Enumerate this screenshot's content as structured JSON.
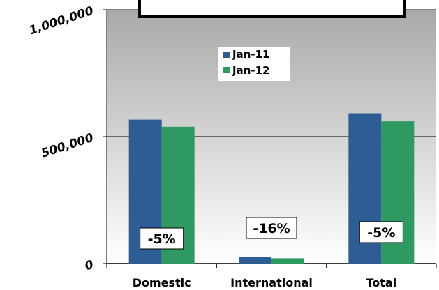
{
  "chart_data": {
    "type": "bar",
    "title": "",
    "xlabel": "",
    "ylabel": "",
    "categories": [
      "Domestic",
      "International",
      "Total"
    ],
    "series": [
      {
        "name": "Jan-11",
        "color": "#2e5c94",
        "values": [
          567000,
          25000,
          592000
        ]
      },
      {
        "name": "Jan-12",
        "color": "#2e9a62",
        "values": [
          539000,
          21000,
          560000
        ]
      }
    ],
    "ylim": [
      0,
      1000000
    ],
    "yticks": [
      0,
      500000,
      1000000
    ],
    "ytick_labels": [
      "0",
      "500,000",
      "1,000,000"
    ],
    "grid": true,
    "legend": "top-center",
    "change_labels": [
      "-5%",
      "-16%",
      "-5%"
    ],
    "plot_background": "#c8c8c8"
  }
}
